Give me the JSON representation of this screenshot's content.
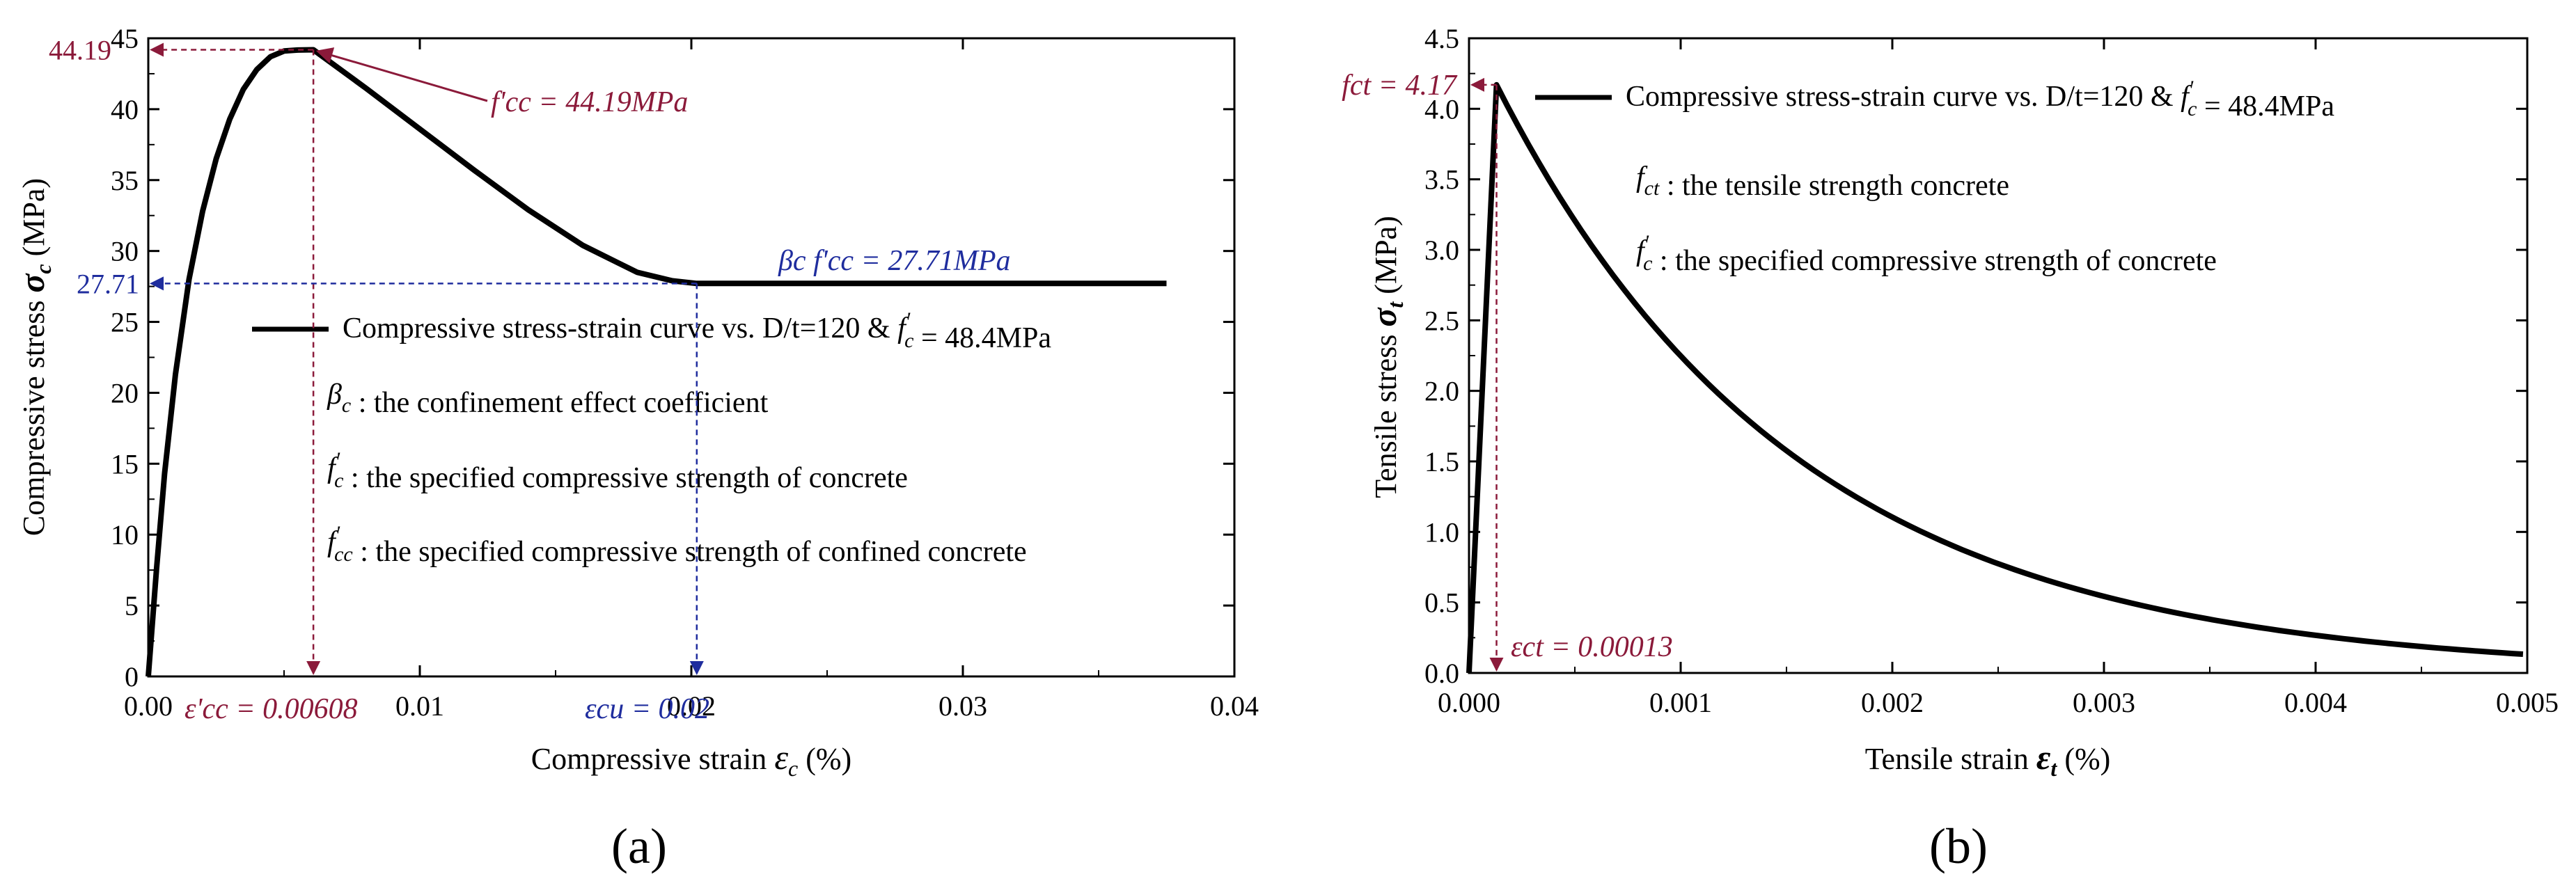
{
  "chart_data": [
    {
      "panel": "a",
      "panel_label": "(a)",
      "type": "line",
      "xlabel": "Compressive strain",
      "xlabel_symbol": "ε",
      "xlabel_sub": "c",
      "xlabel_unit": "(%)",
      "ylabel": "Compressive stress",
      "ylabel_symbol": "σ",
      "ylabel_sub": "c",
      "ylabel_unit": "(MPa)",
      "xlim": [
        0,
        0.04
      ],
      "ylim": [
        0,
        45
      ],
      "xticks": [
        0,
        0.01,
        0.02,
        0.03,
        0.04
      ],
      "xtick_labels": [
        "0.00",
        "0.01",
        "0.02",
        "0.03",
        "0.04"
      ],
      "yticks": [
        0,
        5,
        10,
        15,
        20,
        25,
        30,
        35,
        40,
        45
      ],
      "ytick_labels": [
        "0",
        "5",
        "10",
        "15",
        "20",
        "25",
        "30",
        "35",
        "40",
        "45"
      ],
      "series": [
        {
          "name": "Compressive stress-strain curve vs. D/t=120 & f'c = 48.4MPa",
          "x": [
            0,
            0.0003,
            0.0006,
            0.001,
            0.0015,
            0.002,
            0.0025,
            0.003,
            0.0035,
            0.004,
            0.0045,
            0.005,
            0.0055,
            0.00608,
            0.008,
            0.01,
            0.012,
            0.014,
            0.016,
            0.018,
            0.0193,
            0.0202,
            0.025,
            0.03,
            0.0375
          ],
          "y": [
            0,
            7.5,
            14.3,
            21.3,
            28.0,
            32.8,
            36.5,
            39.3,
            41.4,
            42.8,
            43.7,
            44.1,
            44.17,
            44.19,
            41.5,
            38.6,
            35.7,
            32.9,
            30.4,
            28.5,
            27.9,
            27.71,
            27.71,
            27.71,
            27.71
          ]
        }
      ],
      "legend": {
        "placement": "center-right",
        "entry_text": "Compressive stress-strain curve vs. D/t=120 & ",
        "entry_math": "f",
        "entry_math_sup": "'",
        "entry_math_sub": "c",
        "entry_suffix": " = 48.4MPa"
      },
      "definitions": [
        {
          "symbol": "β",
          "sup": "",
          "sub": "c",
          "text": " : the confinement effect coefficient"
        },
        {
          "symbol": "f",
          "sup": "'",
          "sub": "c",
          "text": " : the specified compressive strength of concrete"
        },
        {
          "symbol": "f",
          "sup": "'",
          "sub": "cc",
          "text": " : the specified compressive strength of confined concrete"
        }
      ],
      "annotations": {
        "peak_value": "44.19",
        "peak_label": "f'cc = 44.19MPa",
        "peak_strain_label": "ε'cc = 0.00608",
        "residual_value": "27.71",
        "residual_label": "βc f'cc = 27.71MPa",
        "ultimate_strain_label": "εcu = 0.02",
        "peak_strain": 0.00608,
        "peak_stress": 44.19,
        "ultimate_strain": 0.0202,
        "residual_stress": 27.71
      },
      "colors": {
        "curve": "#000000",
        "red": "#8B1A3A",
        "blue": "#1F2D9E"
      }
    },
    {
      "panel": "b",
      "panel_label": "(b)",
      "type": "line",
      "xlabel": "Tensile strain",
      "xlabel_symbol": "ε",
      "xlabel_sub": "t",
      "xlabel_unit": "(%)",
      "ylabel": "Tensile stress",
      "ylabel_symbol": "σ",
      "ylabel_sub": "t",
      "ylabel_unit": "(MPa)",
      "xlim": [
        0,
        0.005
      ],
      "ylim": [
        0,
        4.5
      ],
      "xticks": [
        0,
        0.001,
        0.002,
        0.003,
        0.004,
        0.005
      ],
      "xtick_labels": [
        "0.000",
        "0.001",
        "0.002",
        "0.003",
        "0.004",
        "0.005"
      ],
      "yticks": [
        0,
        0.5,
        1.0,
        1.5,
        2.0,
        2.5,
        3.0,
        3.5,
        4.0,
        4.5
      ],
      "ytick_labels": [
        "0.0",
        "0.5",
        "1.0",
        "1.5",
        "2.0",
        "2.5",
        "3.0",
        "3.5",
        "4.0",
        "4.5"
      ],
      "series": [
        {
          "name": "Compressive stress-strain curve vs. D/t=120 & f'c = 48.4MPa",
          "x": [
            0,
            0.00013,
            0.0002,
            0.0003,
            0.0005,
            0.00075,
            0.001,
            0.00125,
            0.0015,
            0.00175,
            0.002,
            0.0025,
            0.003,
            0.0035,
            0.004,
            0.0045,
            0.005
          ],
          "y": [
            0,
            4.17,
            3.97,
            3.66,
            3.13,
            2.57,
            2.12,
            1.78,
            1.51,
            1.28,
            1.08,
            0.78,
            0.56,
            0.41,
            0.28,
            0.19,
            0.12
          ]
        }
      ],
      "legend": {
        "placement": "top-right",
        "entry_text": "Compressive stress-strain curve vs. D/t=120 & ",
        "entry_math": "f",
        "entry_math_sup": "'",
        "entry_math_sub": "c",
        "entry_suffix": " = 48.4MPa"
      },
      "definitions": [
        {
          "symbol": "f",
          "sup": "",
          "sub": "ct",
          "text": " : the tensile strength concrete"
        },
        {
          "symbol": "f",
          "sup": "'",
          "sub": "c",
          "text": " : the specified compressive strength of concrete"
        }
      ],
      "annotations": {
        "peak_label": "fct = 4.17",
        "peak_strain_label": "εct = 0.00013",
        "peak_strain": 0.00013,
        "peak_stress": 4.17
      },
      "colors": {
        "curve": "#000000",
        "red": "#8B1A3A",
        "blue": "#1F2D9E"
      }
    }
  ]
}
